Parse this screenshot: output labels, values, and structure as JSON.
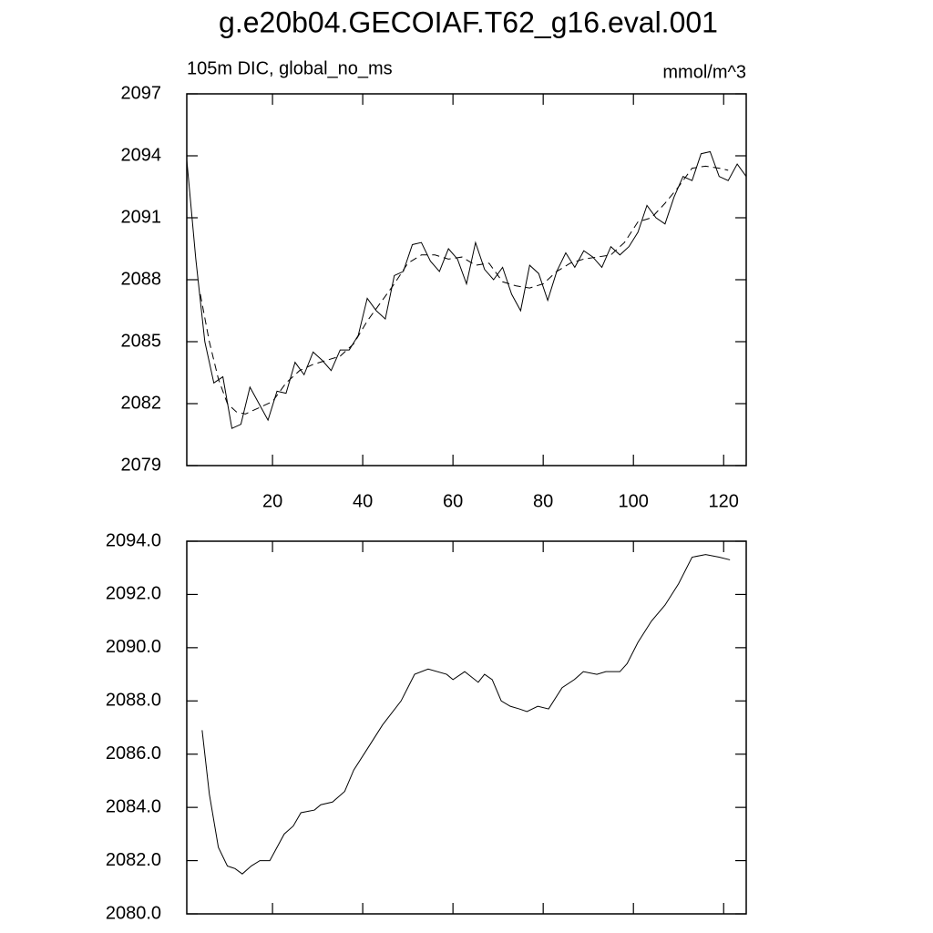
{
  "title": "g.e20b04.GECOIAF.T62_g16.eval.001",
  "chart_data": [
    {
      "type": "line",
      "subtitle_left": "105m DIC, global_no_ms",
      "subtitle_right": "mmol/m^3",
      "xlim": [
        1,
        125
      ],
      "xticks": [
        20,
        40,
        60,
        80,
        100,
        120
      ],
      "ylim": [
        2079,
        2097
      ],
      "yticks": [
        2079,
        2082,
        2085,
        2088,
        2091,
        2094,
        2097
      ],
      "series": [
        {
          "color": "#000000",
          "dash": "none",
          "x": [
            1,
            3,
            5,
            7,
            9,
            11,
            13,
            15,
            17,
            19,
            21,
            23,
            25,
            27,
            29,
            31,
            33,
            35,
            37,
            39,
            41,
            43,
            45,
            47,
            49,
            51,
            53,
            55,
            57,
            59,
            61,
            63,
            65,
            67,
            69,
            71,
            73,
            75,
            77,
            79,
            81,
            83,
            85,
            87,
            89,
            91,
            93,
            95,
            97,
            99,
            101,
            103,
            105,
            107,
            109,
            111,
            113,
            115,
            117,
            119,
            121,
            123,
            125
          ],
          "values": [
            2093.8,
            2089.0,
            2085.0,
            2083.0,
            2083.3,
            2080.8,
            2081.0,
            2082.8,
            2082.0,
            2081.2,
            2082.6,
            2082.5,
            2084.0,
            2083.4,
            2084.5,
            2084.1,
            2083.6,
            2084.6,
            2084.6,
            2085.3,
            2087.1,
            2086.5,
            2086.1,
            2088.2,
            2088.4,
            2089.7,
            2089.8,
            2088.9,
            2088.4,
            2089.5,
            2089.0,
            2087.8,
            2089.8,
            2088.5,
            2088.0,
            2088.6,
            2087.3,
            2086.5,
            2088.7,
            2088.3,
            2087.0,
            2088.4,
            2089.3,
            2088.6,
            2089.4,
            2089.1,
            2088.6,
            2089.6,
            2089.2,
            2089.6,
            2090.3,
            2091.6,
            2091.0,
            2090.7,
            2092.0,
            2093.0,
            2092.8,
            2094.1,
            2094.2,
            2093.0,
            2092.8,
            2093.6,
            2093.0
          ]
        },
        {
          "color": "#000000",
          "dash": "8 5",
          "x": [
            4,
            6,
            8,
            10,
            12,
            14,
            17,
            20,
            23,
            26,
            29,
            32,
            35,
            38,
            41,
            44,
            47,
            50,
            53,
            56,
            59,
            62,
            65,
            68,
            71,
            74,
            77,
            80,
            83,
            86,
            89,
            92,
            95,
            98,
            101,
            104,
            107,
            110,
            113,
            116,
            119,
            121
          ],
          "values": [
            2087.3,
            2085.0,
            2083.2,
            2082.0,
            2081.6,
            2081.5,
            2081.8,
            2082.1,
            2083.0,
            2083.6,
            2083.9,
            2084.1,
            2084.3,
            2084.9,
            2086.0,
            2086.9,
            2087.8,
            2088.8,
            2089.2,
            2089.2,
            2089.0,
            2089.1,
            2088.7,
            2088.8,
            2087.9,
            2087.7,
            2087.6,
            2087.8,
            2088.4,
            2088.8,
            2089.0,
            2089.1,
            2089.2,
            2089.8,
            2090.8,
            2091.0,
            2091.7,
            2092.5,
            2093.4,
            2093.5,
            2093.4,
            2093.3
          ]
        }
      ]
    },
    {
      "type": "line",
      "xlim": [
        1,
        125
      ],
      "xticks": [
        20,
        40,
        60,
        80,
        100,
        120
      ],
      "ylim": [
        2080,
        2094
      ],
      "yticks": [
        {
          "value": 2080,
          "label": "2080.0"
        },
        {
          "value": 2082,
          "label": "2082.0"
        },
        {
          "value": 2084,
          "label": "2084.0"
        },
        {
          "value": 2086,
          "label": "2086.0"
        },
        {
          "value": 2088,
          "label": "2088.0"
        },
        {
          "value": 2090,
          "label": "2090.0"
        },
        {
          "value": 2092,
          "label": "2092.0"
        },
        {
          "value": 2094,
          "label": "2094.0"
        }
      ],
      "series": [
        {
          "color": "#000000",
          "dash": "none",
          "x": [
            4.4,
            6,
            8,
            10,
            11.7,
            13.3,
            15.3,
            17.2,
            19.4,
            22.6,
            24.6,
            26.3,
            29.3,
            30.7,
            33.3,
            36,
            38,
            41.4,
            44.4,
            48.5,
            51.5,
            54.5,
            58.6,
            60,
            62.6,
            65.6,
            67,
            68.7,
            70.7,
            72.7,
            74.7,
            76.4,
            78.8,
            81.2,
            84.2,
            86.9,
            88.9,
            91.9,
            93.9,
            97,
            98.6,
            101,
            104,
            107,
            110,
            113,
            116,
            119,
            121.4
          ],
          "values": [
            2086.9,
            2084.5,
            2082.5,
            2081.8,
            2081.7,
            2081.5,
            2081.8,
            2082.0,
            2082.0,
            2083.0,
            2083.3,
            2083.8,
            2083.9,
            2084.1,
            2084.2,
            2084.6,
            2085.4,
            2086.3,
            2087.1,
            2088.0,
            2089.0,
            2089.2,
            2089.0,
            2088.8,
            2089.1,
            2088.7,
            2089.0,
            2088.8,
            2088.0,
            2087.8,
            2087.7,
            2087.6,
            2087.8,
            2087.7,
            2088.5,
            2088.8,
            2089.1,
            2089.0,
            2089.1,
            2089.1,
            2089.4,
            2090.2,
            2091.0,
            2091.6,
            2092.4,
            2093.4,
            2093.5,
            2093.4,
            2093.3
          ]
        }
      ]
    }
  ]
}
